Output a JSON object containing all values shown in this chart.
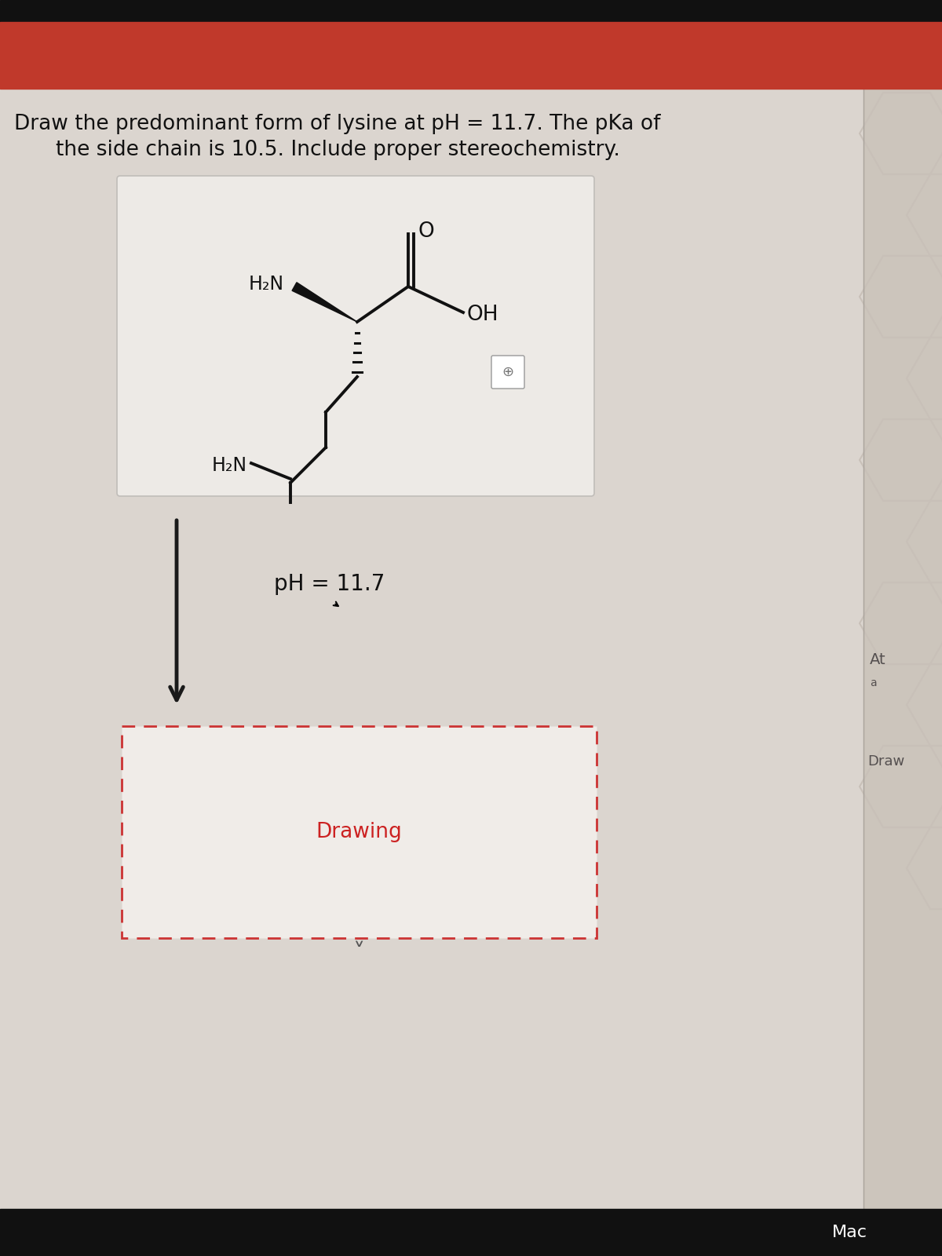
{
  "title_line1": "Draw the predominant form of lysine at pH = 11.7. The pKa of",
  "title_line2": "the side chain is 10.5. Include proper stereochemistry.",
  "title_fontsize": 19,
  "page_bg": "#dbd5cf",
  "box_bg": "#edeae6",
  "box_border": "#c0bdb9",
  "drawing_box_border": "#cc3333",
  "drawing_box_bg": "#f0ece8",
  "pH_label": "pH = 11.7",
  "drawing_label": "Drawing",
  "arrow_color": "#1a1a1a",
  "line_color": "#111111",
  "text_color": "#111111",
  "label_H2N_alpha": "H₂N",
  "label_H2N_epsilon": "H₂N",
  "label_OH": "OH",
  "label_O": "O",
  "red_bar_color": "#c0392b",
  "black_bar_color": "#111111",
  "hex_color": "#c8c0b8",
  "right_panel_color": "#b0aba4"
}
